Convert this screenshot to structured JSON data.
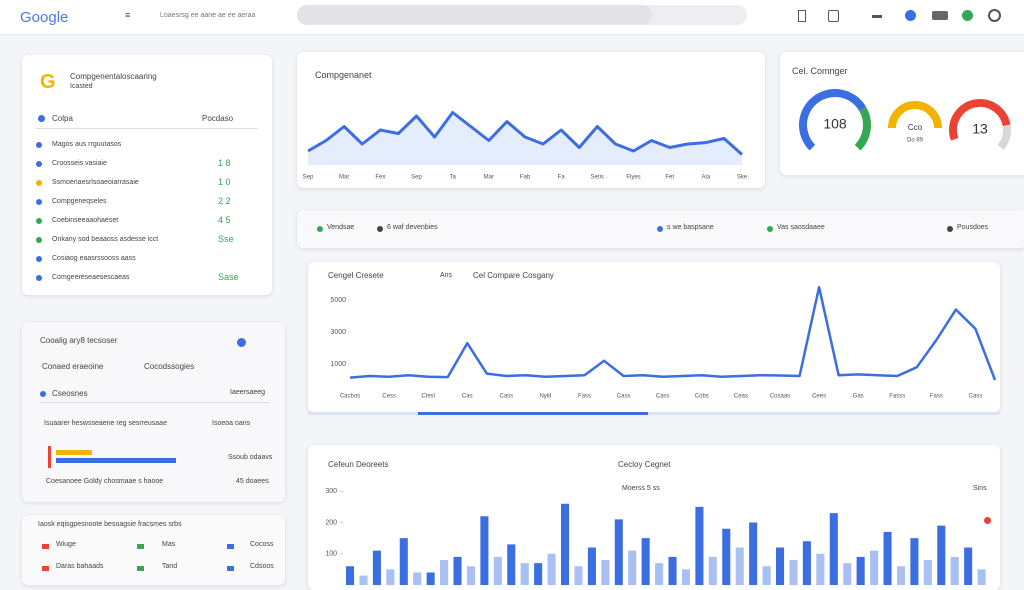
{
  "header": {
    "logo": "Google",
    "breadcrumb": "Loaesrsg ee aane ae ee aeraa"
  },
  "summary": {
    "title": "Compgenentaloscaaring",
    "subtitle": "Icasted",
    "col1": "Colpa",
    "col2": "Pocdaso",
    "rows": [
      {
        "label": "Magos aus rrguutasos",
        "color": "#3b6ee0"
      },
      {
        "label": "Croosseis vasiaie",
        "value": "1 8",
        "color": "#3b6ee0"
      },
      {
        "label": "Ssmoenaesrlsoaeoiarrasaie",
        "value": "1 0",
        "color": "#f2b400"
      },
      {
        "label": "Compgeneqseles",
        "value": "2 2",
        "color": "#3b6ee0"
      },
      {
        "label": "Coebinseeaaohaeset",
        "value": "4 5",
        "color": "#34a853"
      },
      {
        "label": "Onkany sod beaaoss asdesse icct",
        "value": "Sse",
        "color": "#34a853"
      },
      {
        "label": "Cosiaog eaasrssooss aass",
        "color": "#3b6ee0"
      },
      {
        "label": "Comgeereseaesescaeas",
        "value": "Sase",
        "color": "#3b6ee0"
      }
    ]
  },
  "gauges": {
    "title": "Cel. Comnger",
    "items": [
      {
        "value": "108",
        "color": "#3b6ee0"
      },
      {
        "value": "Cco",
        "caption": "Do 89",
        "color": "#f2b400"
      },
      {
        "value": "13",
        "color": "#ea4335"
      }
    ]
  },
  "filters": [
    "Vendsae",
    "6 waf devenbies",
    "s we baspsane",
    "Vas saosdaaee",
    "Pousdoes"
  ],
  "breakdown": {
    "title": "Cooalig ary8 tecsoser",
    "tab1": "Conaed eraeoine",
    "tab2": "Cocodssogies",
    "row1": "Cseosnes",
    "row1_value": "Iaeersaeeg",
    "row2": "Isuaarer heswsseaene reg sesrreusaae",
    "row2_value": "Isoeoa oans",
    "row3_value": "Ssoub odaavs",
    "row4": "Coesanoee Goldy chosmaae s haooe",
    "row4_value": "45 doaees"
  },
  "footer_list": {
    "title": "Iaosk eqisgpesnoote besoagsie fracsmes srbs",
    "items": [
      [
        "Wiuge",
        "Mas",
        "Cocoss"
      ],
      [
        "Daras bahaads",
        "Tand",
        "Cdsoos"
      ]
    ]
  },
  "chart_data": [
    {
      "type": "line",
      "title": "Compgenanet",
      "color": "#3b6ee0",
      "categories": [
        "Sep",
        null,
        "Mar",
        null,
        "Fex",
        null,
        "Sep",
        null,
        "Ta",
        null,
        "Mar",
        null,
        "Fab",
        null,
        "Fa",
        null,
        "Setis",
        null,
        "Flyes",
        null,
        "Fet",
        null,
        "Ala",
        null,
        "Ske"
      ],
      "values": [
        20,
        35,
        55,
        30,
        50,
        45,
        70,
        40,
        75,
        55,
        35,
        62,
        40,
        30,
        50,
        25,
        55,
        30,
        20,
        35,
        25,
        30,
        32,
        38,
        15
      ],
      "ylim": [
        0,
        100
      ]
    },
    {
      "type": "line",
      "title": "Cengel Cresete",
      "subtitle": "Ans",
      "legend": "Cel Compare Cosgany",
      "color": "#3b6ee0",
      "categories": [
        "Cacbos",
        null,
        "Cess",
        null,
        "Ctesl",
        null,
        "Cas",
        null,
        "Cass",
        null,
        "Nyld",
        null,
        "Fass",
        null,
        "Cass",
        null,
        "Cass",
        null,
        "Cobs",
        null,
        "Ceas",
        null,
        "Cosaas",
        null,
        "Cees",
        null,
        "Gas",
        null,
        "Fasss",
        null,
        "Fass",
        null,
        "Cass",
        null
      ],
      "values": [
        150,
        250,
        200,
        300,
        200,
        180,
        2300,
        400,
        250,
        300,
        200,
        250,
        300,
        1200,
        250,
        300,
        200,
        250,
        300,
        200,
        250,
        300,
        280,
        250,
        5800,
        300,
        350,
        300,
        250,
        800,
        2500,
        4400,
        3200,
        0
      ],
      "ylim": [
        0,
        6000
      ],
      "yticks": [
        1000,
        3000,
        5000
      ]
    },
    {
      "type": "bar",
      "title": "Cefeun Deoreets",
      "subtitle": "Cecloy Cegnet",
      "note": "Moerss 5 ss",
      "side_label": "Sins",
      "ylim": [
        0,
        320
      ],
      "yticks": [
        100,
        200,
        300
      ],
      "series": [
        {
          "color": "#3b6ee0",
          "values": [
            60,
            110,
            150,
            40,
            90,
            220,
            130,
            70,
            260,
            120,
            210,
            150,
            90,
            250,
            180,
            200,
            120,
            140,
            230,
            90,
            170,
            150,
            190,
            120
          ]
        },
        {
          "color": "#a9c0f2",
          "values": [
            30,
            50,
            40,
            80,
            60,
            90,
            70,
            100,
            60,
            80,
            110,
            70,
            50,
            90,
            120,
            60,
            80,
            100,
            70,
            110,
            60,
            80,
            90,
            50
          ]
        }
      ]
    }
  ]
}
